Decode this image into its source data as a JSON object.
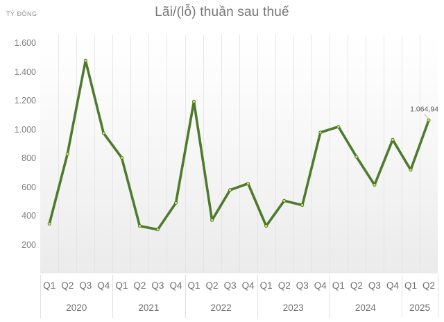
{
  "chart_data": {
    "type": "line",
    "title": "Lãi/(lỗ) thuần sau thuế",
    "ylabel": "TỶ ĐỒNG",
    "ylim": [
      0,
      1600
    ],
    "grid": "vertical-quarter-dividers",
    "legend": "none",
    "ytick_labels": [
      "1.600",
      "1.400",
      "1.200",
      "1.000",
      "800",
      "600",
      "400",
      "200",
      "-"
    ],
    "ytick_values": [
      1600,
      1400,
      1200,
      1000,
      800,
      600,
      400,
      200,
      0
    ],
    "years": [
      {
        "label": "2020",
        "quarters": [
          "Q1",
          "Q2",
          "Q3",
          "Q4"
        ]
      },
      {
        "label": "2021",
        "quarters": [
          "Q1",
          "Q2",
          "Q3",
          "Q4"
        ]
      },
      {
        "label": "2022",
        "quarters": [
          "Q1",
          "Q2",
          "Q3",
          "Q4"
        ]
      },
      {
        "label": "2023",
        "quarters": [
          "Q1",
          "Q2",
          "Q3",
          "Q4"
        ]
      },
      {
        "label": "2024",
        "quarters": [
          "Q1",
          "Q2",
          "Q3",
          "Q4"
        ]
      },
      {
        "label": "2025",
        "quarters": [
          "Q1",
          "Q2"
        ]
      }
    ],
    "x": [
      "Q1 2020",
      "Q2 2020",
      "Q3 2020",
      "Q4 2020",
      "Q1 2021",
      "Q2 2021",
      "Q3 2021",
      "Q4 2021",
      "Q1 2022",
      "Q2 2022",
      "Q3 2022",
      "Q4 2022",
      "Q1 2023",
      "Q2 2023",
      "Q3 2023",
      "Q4 2023",
      "Q1 2024",
      "Q2 2024",
      "Q3 2024",
      "Q4 2024",
      "Q1 2025",
      "Q2 2025"
    ],
    "values": [
      345,
      830,
      1480,
      975,
      805,
      330,
      305,
      490,
      1195,
      370,
      580,
      625,
      330,
      505,
      475,
      980,
      1020,
      810,
      615,
      930,
      720,
      1064.94
    ],
    "last_point_label": "1.064,94",
    "line_color": "#4d7b2d",
    "marker_fill": "#d3e14a",
    "marker_stroke": "#3f6b26",
    "leader_color": "#b0b0b0"
  }
}
